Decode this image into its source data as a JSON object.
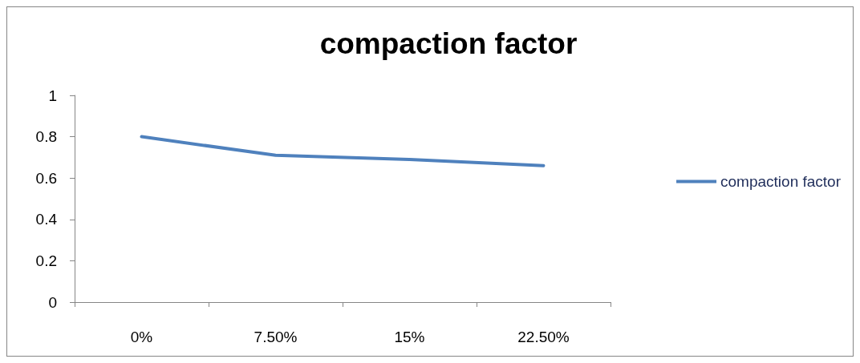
{
  "chart_data": {
    "type": "line",
    "title": "compaction factor",
    "categories": [
      "0%",
      "7.50%",
      "15%",
      "22.50%"
    ],
    "series": [
      {
        "name": "compaction factor",
        "color": "#4f81bd",
        "values": [
          0.8,
          0.71,
          0.69,
          0.66
        ]
      }
    ],
    "ylim": [
      0,
      1
    ],
    "yticks": [
      0,
      0.2,
      0.4,
      0.6,
      0.8,
      1
    ],
    "grid": false,
    "legend": "right",
    "marker": "none",
    "line_style": "solid"
  }
}
